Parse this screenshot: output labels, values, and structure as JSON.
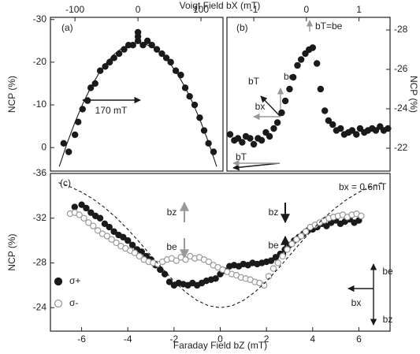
{
  "chart_data": [
    {
      "type": "scatter",
      "label": "(a)",
      "xlabel": "Voigt Field bX (mT)",
      "ylabel": "NCP (%)",
      "xaxis_position": "top",
      "yaxis_position": "left",
      "xlim": [
        -139,
        135
      ],
      "ylim": [
        5.5,
        -30.5
      ],
      "xticks": [
        -100,
        0,
        100
      ],
      "yticks": [
        -30,
        -20,
        -10,
        0
      ],
      "annotations": [
        "170 mT"
      ],
      "series": [
        {
          "color": "#1a1a1a",
          "mode": "markers",
          "marker": "filled",
          "x": [
            -118,
            -110,
            -100,
            -95,
            -88,
            -80,
            -75,
            -68,
            -60,
            -52,
            -45,
            -38,
            -30,
            -22,
            -15,
            -8,
            0,
            0,
            0,
            8,
            15,
            22,
            30,
            38,
            45,
            52,
            60,
            68,
            75,
            82,
            90,
            98,
            105,
            112,
            120
          ],
          "values": [
            -1,
            1,
            -3,
            -6,
            -9,
            -11,
            -14,
            -15,
            -18,
            -19,
            -20,
            -21,
            -22,
            -23,
            -24,
            -24,
            -27,
            -26,
            -25,
            -24,
            -25,
            -24,
            -23,
            -22,
            -21,
            -20,
            -18,
            -17,
            -14,
            -12,
            -10,
            -7,
            -4,
            -1,
            1
          ]
        },
        {
          "color": "#1a1a1a",
          "mode": "line",
          "x": [
            -125,
            -112.5,
            -100,
            -87.5,
            -75,
            -62.5,
            -50,
            -37.5,
            -25,
            -12.5,
            0,
            12.5,
            25,
            37.5,
            50,
            62.5,
            75,
            87.5,
            100,
            112.5,
            125
          ],
          "values": [
            4.45,
            -1.05,
            -5.97,
            -10.32,
            -14.08,
            -17.26,
            -19.87,
            -21.9,
            -23.34,
            -24.21,
            -24.5,
            -24.21,
            -23.34,
            -21.9,
            -19.87,
            -17.26,
            -14.08,
            -10.32,
            -5.97,
            -1.05,
            4.45
          ]
        }
      ]
    },
    {
      "type": "scatter",
      "label": "(b)",
      "ylabel": "NCP (%)",
      "xaxis_position": "top",
      "yaxis_position": "right",
      "xlim": [
        -1.51,
        1.59
      ],
      "ylim": [
        -20.84,
        -28.64
      ],
      "xticks": [
        -1,
        0,
        1
      ],
      "yticks": [
        -28,
        -26,
        -24,
        -22
      ],
      "annotations": [
        "bT=be",
        "bT",
        "be",
        "bx",
        "bT"
      ],
      "series": [
        {
          "color": "#1a1a1a",
          "mode": "markers",
          "marker": "filled",
          "x": [
            -1.45,
            -1.37,
            -1.3,
            -1.22,
            -1.15,
            -1.07,
            -1.0,
            -0.92,
            -0.85,
            -0.77,
            -0.7,
            -0.62,
            -0.55,
            -0.47,
            -0.4,
            -0.32,
            -0.25,
            -0.17,
            -0.1,
            -0.02,
            0.05,
            0.12,
            0.2,
            0.27,
            0.35,
            0.42,
            0.5,
            0.57,
            0.65,
            0.72,
            0.8,
            0.87,
            0.95,
            1.02,
            1.1,
            1.17,
            1.25,
            1.32,
            1.4,
            1.47,
            1.55
          ],
          "values": [
            -22.7,
            -22.4,
            -22.5,
            -22.3,
            -22.6,
            -22.5,
            -22.2,
            -22.5,
            -22.4,
            -22.8,
            -22.6,
            -23.0,
            -23.3,
            -23.8,
            -24.4,
            -25.0,
            -25.6,
            -26.2,
            -26.5,
            -26.8,
            -27.0,
            -27.1,
            -26.3,
            -25.0,
            -23.9,
            -23.4,
            -23.2,
            -22.9,
            -23.0,
            -22.7,
            -22.8,
            -22.9,
            -22.7,
            -23.0,
            -22.8,
            -22.9,
            -23.0,
            -22.9,
            -23.1,
            -22.9,
            -23.0
          ]
        }
      ]
    },
    {
      "type": "scatter",
      "label": "(c)",
      "xlabel": "Faraday Field bZ (mT)",
      "ylabel": "NCP (%)",
      "xaxis_position": "bottom",
      "yaxis_position": "left",
      "xlim": [
        -7.35,
        7.35
      ],
      "ylim": [
        -21.9,
        -36
      ],
      "xticks": [
        -6,
        -4,
        -2,
        0,
        2,
        4,
        6
      ],
      "yticks": [
        -36,
        -32,
        -28,
        -24
      ],
      "annotations": [
        "bx = 0.6mT",
        "bz",
        "be",
        "bz",
        "be",
        "be",
        "bx",
        "bz"
      ],
      "series": [
        {
          "name": "σ+",
          "color": "#1a1a1a",
          "mode": "markers",
          "marker": "filled",
          "x": [
            -6.3,
            -6.0,
            -5.8,
            -5.6,
            -5.4,
            -5.2,
            -5.0,
            -4.8,
            -4.6,
            -4.4,
            -4.2,
            -4.0,
            -3.8,
            -3.6,
            -3.4,
            -3.2,
            -3.0,
            -2.8,
            -2.6,
            -2.4,
            -2.2,
            -2.0,
            -1.8,
            -1.6,
            -1.4,
            -1.2,
            -1.0,
            -0.8,
            -0.6,
            -0.4,
            -0.2,
            0,
            0.2,
            0.4,
            0.6,
            0.8,
            1.0,
            1.2,
            1.4,
            1.6,
            1.8,
            2.0,
            2.2,
            2.4,
            2.6,
            2.8,
            3.0,
            3.2,
            3.4,
            3.6,
            3.8,
            4.0,
            4.2,
            4.4,
            4.6,
            4.8,
            5.0,
            5.2,
            5.4,
            5.6,
            5.8,
            6.0
          ],
          "values": [
            -33.0,
            -33.2,
            -32.9,
            -32.5,
            -32.2,
            -32.0,
            -31.5,
            -31.2,
            -30.8,
            -30.5,
            -30.3,
            -30.0,
            -29.6,
            -29.2,
            -29.0,
            -28.6,
            -28.3,
            -27.8,
            -27.4,
            -27.0,
            -26.3,
            -26.0,
            -26.2,
            -26.1,
            -26.0,
            -26.2,
            -26.0,
            -26.2,
            -26.4,
            -26.5,
            -26.6,
            -27.0,
            -27.3,
            -27.7,
            -27.8,
            -27.7,
            -27.9,
            -27.8,
            -28.0,
            -27.9,
            -28.0,
            -28.1,
            -28.2,
            -28.5,
            -28.8,
            -29.2,
            -29.6,
            -30.0,
            -30.3,
            -30.6,
            -30.9,
            -31.0,
            -31.2,
            -31.5,
            -31.3,
            -31.6,
            -31.8,
            -31.5,
            -31.7,
            -31.9,
            -31.6,
            -31.8
          ]
        },
        {
          "name": "σ-",
          "color": "#999999",
          "mode": "markers",
          "marker": "open",
          "x": [
            -6.5,
            -6.3,
            -6.1,
            -5.9,
            -5.7,
            -5.5,
            -5.3,
            -5.1,
            -4.9,
            -4.7,
            -4.5,
            -4.3,
            -4.1,
            -3.9,
            -3.7,
            -3.5,
            -3.3,
            -3.1,
            -2.9,
            -2.7,
            -2.5,
            -2.3,
            -2.1,
            -1.9,
            -1.7,
            -1.5,
            -1.3,
            -1.1,
            -0.9,
            -0.7,
            -0.5,
            -0.3,
            -0.1,
            0.1,
            0.3,
            0.5,
            0.7,
            0.9,
            1.1,
            1.3,
            1.5,
            1.7,
            1.9,
            2.1,
            2.3,
            2.5,
            2.7,
            2.9,
            3.1,
            3.3,
            3.5,
            3.7,
            3.9,
            4.1,
            4.3,
            4.5,
            4.7,
            4.9,
            5.1,
            5.3,
            5.5,
            5.7,
            5.9,
            6.1
          ],
          "values": [
            -32.4,
            -32.5,
            -32.3,
            -32.0,
            -31.6,
            -31.3,
            -30.9,
            -30.6,
            -30.4,
            -30.1,
            -29.8,
            -29.5,
            -29.3,
            -29.1,
            -28.9,
            -28.6,
            -28.3,
            -28.1,
            -28.0,
            -27.9,
            -28.1,
            -28.3,
            -28.4,
            -28.2,
            -28.5,
            -28.3,
            -28.6,
            -28.4,
            -28.5,
            -28.3,
            -28.1,
            -27.8,
            -27.6,
            -27.4,
            -27.2,
            -27.0,
            -26.9,
            -26.7,
            -26.6,
            -26.5,
            -26.3,
            -26.2,
            -26.0,
            -26.8,
            -27.5,
            -28.0,
            -28.6,
            -29.2,
            -29.7,
            -30.1,
            -30.4,
            -30.8,
            -31.2,
            -31.4,
            -31.6,
            -31.8,
            -32.0,
            -32.1,
            -32.2,
            -32.3,
            -32.1,
            -32.3,
            -32.4,
            -32.2
          ]
        },
        {
          "color": "#1a1a1a",
          "mode": "line",
          "dash": true,
          "x": [
            -7,
            -6.5,
            -6,
            -5.5,
            -5,
            -4.5,
            -4,
            -3.5,
            -3,
            -2.5,
            -2,
            -1.5,
            -1,
            -0.5,
            0,
            0.5,
            1,
            1.5,
            2,
            2.5,
            3,
            3.5,
            4,
            4.5,
            5,
            5.5,
            6,
            6.5,
            7
          ],
          "values": [
            -35.18,
            -34.81,
            -34.33,
            -33.71,
            -32.94,
            -32.04,
            -31.0,
            -29.86,
            -28.67,
            -27.48,
            -26.36,
            -25.39,
            -24.64,
            -24.16,
            -24.0,
            -24.16,
            -24.64,
            -25.39,
            -26.36,
            -27.48,
            -28.67,
            -29.86,
            -31.0,
            -32.04,
            -32.94,
            -33.71,
            -34.33,
            -34.81,
            -35.18
          ]
        }
      ]
    }
  ]
}
